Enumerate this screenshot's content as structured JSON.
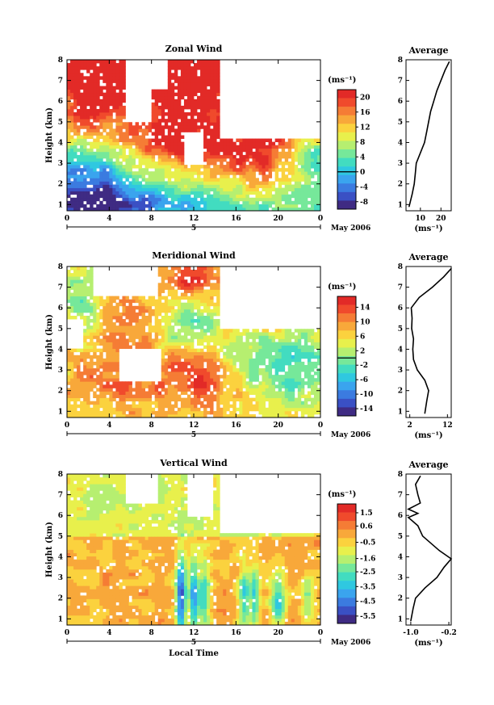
{
  "chart_data": [
    {
      "id": "zonal",
      "type": "heatmap",
      "title": "Zonal Wind",
      "ylabel": "Height (km)",
      "xlabel": "",
      "x_ticks": [
        "0",
        "4",
        "8",
        "12",
        "16",
        "20",
        "0"
      ],
      "y_ticks": [
        "1",
        "2",
        "3",
        "4",
        "5",
        "6",
        "7",
        "8"
      ],
      "xlim": [
        0,
        24
      ],
      "ylim": [
        0.7,
        8
      ],
      "date_ticks": [
        "5"
      ],
      "date_label": "May 2006",
      "colorbar": {
        "unit": "(ms⁻¹)",
        "ticks": [
          "20",
          "16",
          "12",
          "8",
          "4",
          "0",
          "-4",
          "-8"
        ],
        "range": [
          -10,
          22
        ],
        "zero_line": 0
      },
      "grid": false,
      "profile": {
        "title": "Average",
        "xlabel": "(ms⁻¹)",
        "x_ticks": [
          "10",
          "20"
        ],
        "xlim": [
          3,
          25
        ],
        "points": [
          {
            "h": 0.9,
            "v": 4.5
          },
          {
            "h": 1.5,
            "v": 6
          },
          {
            "h": 2.0,
            "v": 7
          },
          {
            "h": 2.5,
            "v": 7.5
          },
          {
            "h": 3.0,
            "v": 8
          },
          {
            "h": 3.5,
            "v": 10
          },
          {
            "h": 4.0,
            "v": 12
          },
          {
            "h": 4.5,
            "v": 13
          },
          {
            "h": 5.0,
            "v": 14
          },
          {
            "h": 5.5,
            "v": 15
          },
          {
            "h": 6.0,
            "v": 16.5
          },
          {
            "h": 6.5,
            "v": 18
          },
          {
            "h": 7.0,
            "v": 20
          },
          {
            "h": 7.5,
            "v": 22
          },
          {
            "h": 7.9,
            "v": 24
          }
        ]
      }
    },
    {
      "id": "meridional",
      "type": "heatmap",
      "title": "Meridional Wind",
      "ylabel": "Height (km)",
      "xlabel": "",
      "x_ticks": [
        "0",
        "4",
        "8",
        "12",
        "16",
        "20",
        "0"
      ],
      "y_ticks": [
        "1",
        "2",
        "3",
        "4",
        "5",
        "6",
        "7",
        "8"
      ],
      "xlim": [
        0,
        24
      ],
      "ylim": [
        0.7,
        8
      ],
      "date_ticks": [
        "5"
      ],
      "date_label": "May 2006",
      "colorbar": {
        "unit": "(ms⁻¹)",
        "ticks": [
          "14",
          "10",
          "6",
          "2",
          "-2",
          "-6",
          "-10",
          "-14"
        ],
        "range": [
          -16,
          17
        ],
        "zero_line": 0
      },
      "grid": false,
      "profile": {
        "title": "Average",
        "xlabel": "(ms⁻¹)",
        "x_ticks": [
          "2",
          "12"
        ],
        "xlim": [
          1,
          13
        ],
        "points": [
          {
            "h": 0.9,
            "v": 6
          },
          {
            "h": 1.5,
            "v": 6.5
          },
          {
            "h": 2.0,
            "v": 7
          },
          {
            "h": 2.5,
            "v": 6
          },
          {
            "h": 3.0,
            "v": 4
          },
          {
            "h": 3.5,
            "v": 3
          },
          {
            "h": 4.0,
            "v": 2.8
          },
          {
            "h": 4.5,
            "v": 3
          },
          {
            "h": 5.0,
            "v": 2.5
          },
          {
            "h": 5.5,
            "v": 2.6
          },
          {
            "h": 6.0,
            "v": 2.4
          },
          {
            "h": 6.5,
            "v": 4.5
          },
          {
            "h": 7.0,
            "v": 8
          },
          {
            "h": 7.5,
            "v": 11
          },
          {
            "h": 7.9,
            "v": 13
          }
        ]
      }
    },
    {
      "id": "vertical",
      "type": "heatmap",
      "title": "Vertical Wind",
      "ylabel": "Height (km)",
      "xlabel": "Local Time",
      "x_ticks": [
        "0",
        "4",
        "8",
        "12",
        "16",
        "20",
        "0"
      ],
      "y_ticks": [
        "1",
        "2",
        "3",
        "4",
        "5",
        "6",
        "7",
        "8"
      ],
      "xlim": [
        0,
        24
      ],
      "ylim": [
        0.7,
        8
      ],
      "date_ticks": [
        "5"
      ],
      "date_label": "May 2006",
      "colorbar": {
        "unit": "(ms⁻¹)",
        "ticks": [
          "1.5",
          "0.6",
          "-0.5",
          "-1.6",
          "-2.5",
          "-3.5",
          "-4.5",
          "-5.5"
        ],
        "range": [
          -6,
          2.1
        ],
        "zero_line": null
      },
      "grid": false,
      "profile": {
        "title": "Average",
        "xlabel": "(ms⁻¹)",
        "x_ticks": [
          "-1.0",
          "-0.2"
        ],
        "xlim": [
          -1.1,
          -0.15
        ],
        "points": [
          {
            "h": 0.9,
            "v": -1.0
          },
          {
            "h": 1.5,
            "v": -0.95
          },
          {
            "h": 2.0,
            "v": -0.9
          },
          {
            "h": 2.5,
            "v": -0.7
          },
          {
            "h": 3.0,
            "v": -0.45
          },
          {
            "h": 3.5,
            "v": -0.3
          },
          {
            "h": 3.9,
            "v": -0.15
          },
          {
            "h": 4.3,
            "v": -0.4
          },
          {
            "h": 5.0,
            "v": -0.75
          },
          {
            "h": 5.5,
            "v": -0.85
          },
          {
            "h": 5.9,
            "v": -1.05
          },
          {
            "h": 6.1,
            "v": -0.85
          },
          {
            "h": 6.3,
            "v": -1.05
          },
          {
            "h": 6.6,
            "v": -0.8
          },
          {
            "h": 7.0,
            "v": -0.85
          },
          {
            "h": 7.5,
            "v": -0.9
          },
          {
            "h": 7.9,
            "v": -0.8
          }
        ]
      }
    }
  ],
  "palette": [
    "#3f2b83",
    "#3a50c4",
    "#3b7be0",
    "#3aa4ee",
    "#2fc8e0",
    "#42dcc0",
    "#76e89a",
    "#b6ef70",
    "#e8f04c",
    "#fbd23e",
    "#f8a83a",
    "#f57c35",
    "#f04a2c",
    "#e22a27"
  ]
}
